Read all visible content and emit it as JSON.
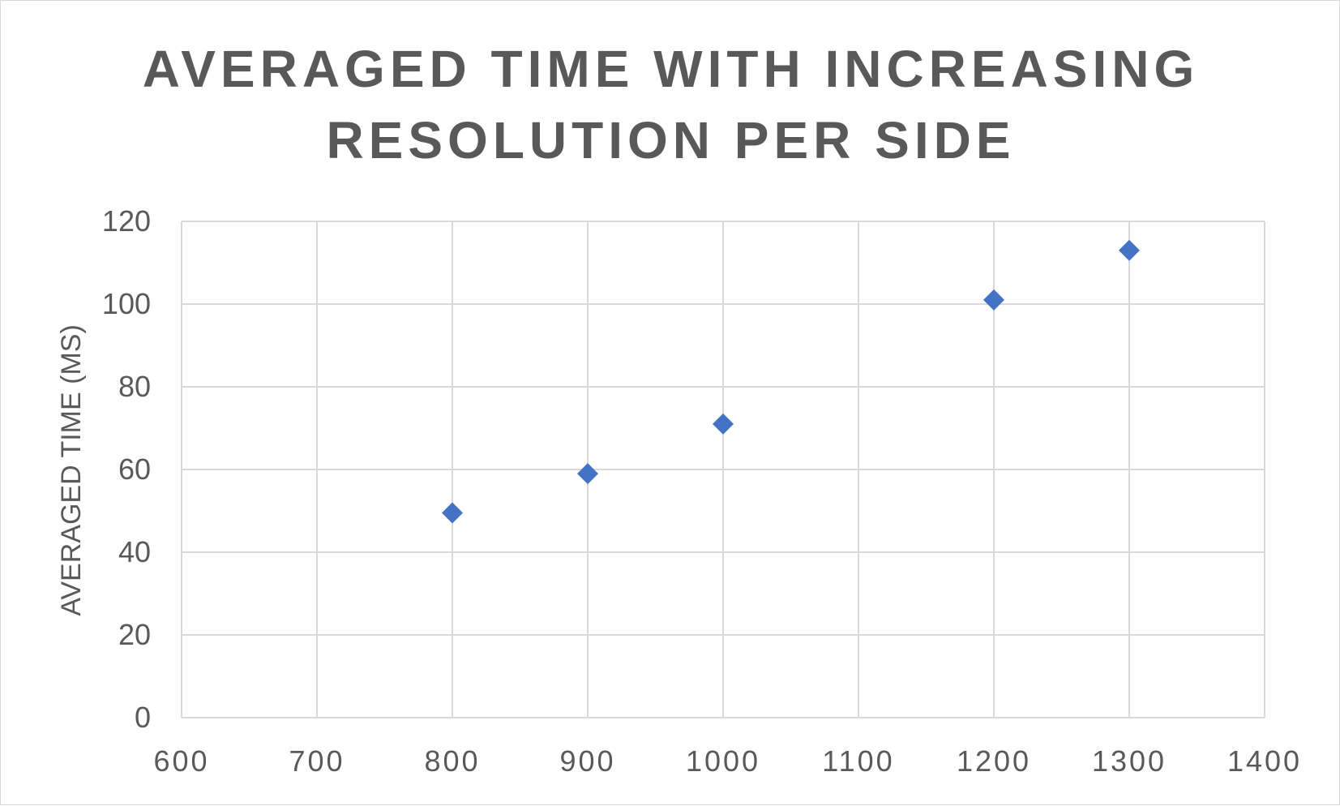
{
  "chart_data": {
    "type": "scatter",
    "title_lines": [
      "AVERAGED TIME WITH INCREASING",
      "RESOLUTION PER SIDE"
    ],
    "xlabel": "",
    "ylabel": "AVERAGED TIME (MS)",
    "xlim": [
      600,
      1400
    ],
    "ylim": [
      0,
      120
    ],
    "x_ticks": [
      600,
      700,
      800,
      900,
      1000,
      1100,
      1200,
      1300,
      1400
    ],
    "y_ticks": [
      0,
      20,
      40,
      60,
      80,
      100,
      120
    ],
    "grid": true,
    "legend": "none",
    "marker": "diamond",
    "marker_color": "#4472C4",
    "grid_color": "#d9d9d9",
    "text_color": "#595959",
    "series": [
      {
        "x": [
          800,
          900,
          1000,
          1200,
          1300
        ],
        "y": [
          49.5,
          59,
          71,
          101,
          113
        ]
      }
    ]
  }
}
